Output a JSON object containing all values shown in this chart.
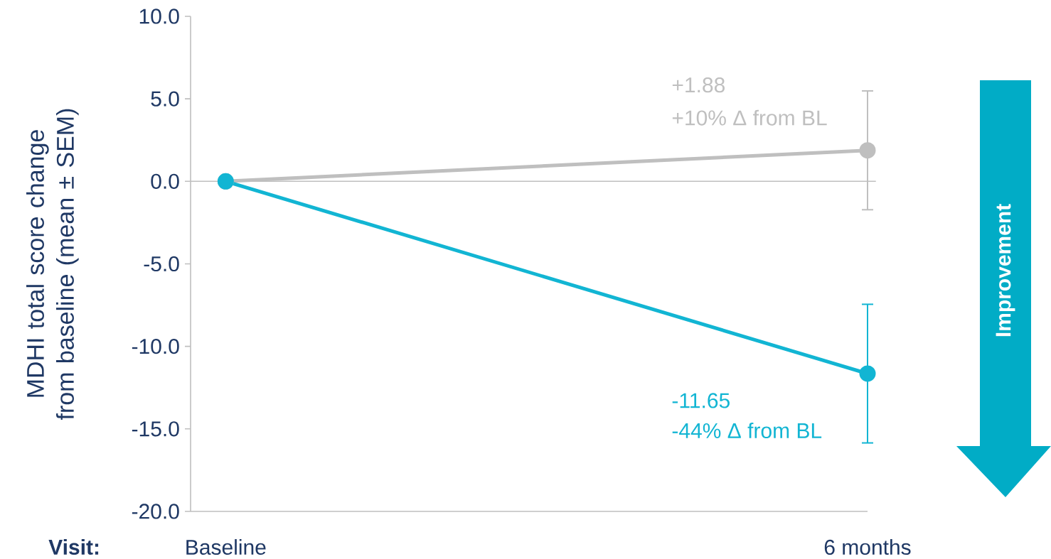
{
  "chart_data": {
    "type": "line",
    "xlabel": "Visit:",
    "ylabel": "MDHI total score change from baseline (mean ± SEM)",
    "categories": [
      "Baseline",
      "6 months"
    ],
    "series": [
      {
        "color": "#bfbfbf",
        "values": [
          0,
          1.88
        ],
        "errors": [
          null,
          3.6
        ]
      },
      {
        "color": "#12b5d3",
        "values": [
          0,
          -11.65
        ],
        "errors": [
          null,
          4.2
        ]
      }
    ],
    "ylim": [
      -20,
      10
    ],
    "yticks": [
      {
        "value": -20,
        "label": "-20.0"
      },
      {
        "value": -15,
        "label": "-15.0"
      },
      {
        "value": -10,
        "label": "-10.0"
      },
      {
        "value": -5,
        "label": "-5.0"
      },
      {
        "value": 0,
        "label": "0.0"
      },
      {
        "value": 5,
        "label": "5.0"
      },
      {
        "value": 10,
        "label": "10.0"
      }
    ],
    "ref_lines": [
      {
        "axis": "y",
        "value": 0,
        "color": "#bfbfbf"
      }
    ],
    "marker": "circle",
    "annotations": [
      "+1.88",
      "+10% Δ from BL",
      "-11.65",
      "-44% Δ from BL",
      "Improvement"
    ]
  }
}
